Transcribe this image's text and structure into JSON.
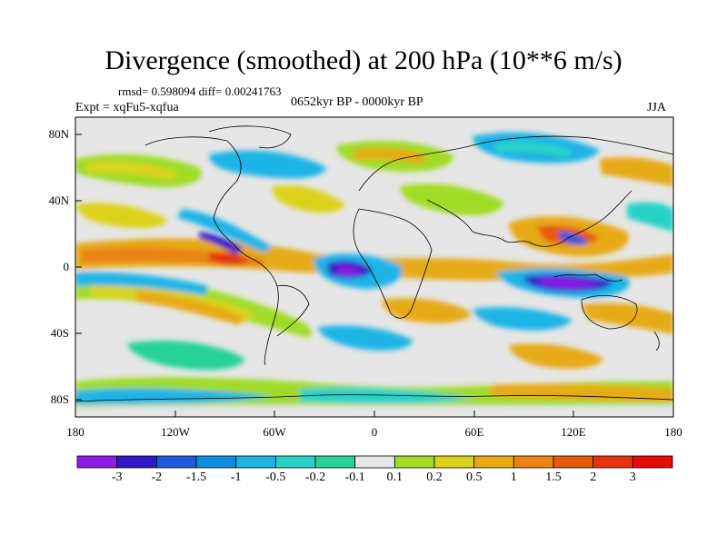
{
  "title": "Divergence (smoothed) at 200 hPa (10**6 m/s)",
  "stats_text": "rmsd= 0.598094 diff= 0.00241763",
  "expt_text": "Expt = xqFu5-xqfua",
  "period_text": "0652kyr BP - 0000kyr BP",
  "season": "JJA",
  "lat_labels": [
    "80N",
    "40N",
    "0",
    "40S",
    "80S"
  ],
  "lon_labels": [
    "180",
    "120W",
    "60W",
    "0",
    "60E",
    "120E",
    "180"
  ],
  "colorbar": {
    "labels": [
      "-3",
      "-2",
      "-1.5",
      "-1",
      "-0.5",
      "-0.2",
      "-0.1",
      "0.1",
      "0.2",
      "0.5",
      "1",
      "1.5",
      "2",
      "3"
    ],
    "colors": [
      "#8a1ee6",
      "#3219c8",
      "#1e5adc",
      "#0f8cdc",
      "#1eb4e6",
      "#28d2c8",
      "#28d296",
      "#e6e6e6",
      "#a0dc28",
      "#dcd21e",
      "#e6aa14",
      "#eb8214",
      "#e65a0f",
      "#e6320f",
      "#e60a0a"
    ]
  },
  "map_colors": {
    "ocean_base": "#e6e6e6",
    "coast": "#000000"
  }
}
